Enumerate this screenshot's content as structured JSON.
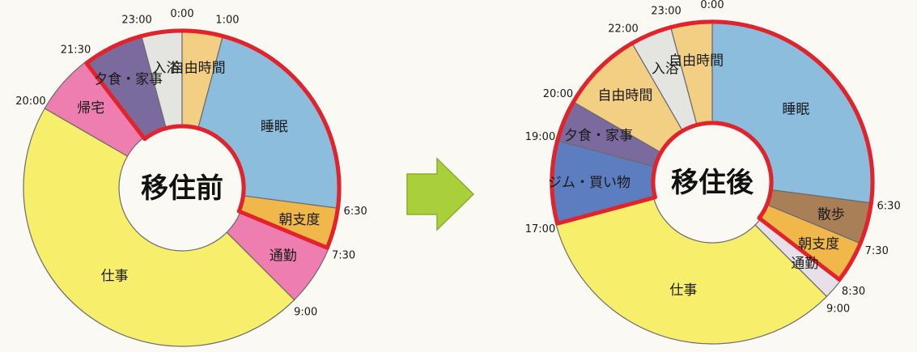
{
  "chart_data": [
    {
      "type": "donut",
      "center_label": "移住前",
      "highlight": {
        "from": "21:30",
        "to": "7:30"
      },
      "segments": [
        {
          "label": "睡眠",
          "start": "1:00",
          "end": "6:30",
          "color": "#8cbddc"
        },
        {
          "label": "朝支度",
          "start": "6:30",
          "end": "7:30",
          "color": "#f0b74a"
        },
        {
          "label": "通勤",
          "start": "7:30",
          "end": "9:00",
          "color": "#ee7eb0"
        },
        {
          "label": "仕事",
          "start": "9:00",
          "end": "20:00",
          "color": "#f7ef6c"
        },
        {
          "label": "帰宅",
          "start": "20:00",
          "end": "21:30",
          "color": "#ee7eb0"
        },
        {
          "label": "夕食・家事",
          "start": "21:30",
          "end": "23:00",
          "color": "#7a6a9e"
        },
        {
          "label": "入浴",
          "start": "23:00",
          "end": "0:00",
          "color": "#e4e4e0"
        },
        {
          "label": "自由時間",
          "start": "0:00",
          "end": "1:00",
          "color": "#f3cf84"
        }
      ],
      "time_labels": [
        "0:00",
        "1:00",
        "6:30",
        "7:30",
        "9:00",
        "20:00",
        "21:30",
        "23:00"
      ]
    },
    {
      "type": "donut",
      "center_label": "移住後",
      "highlight": {
        "from": "17:00",
        "to": "8:30"
      },
      "segments": [
        {
          "label": "睡眠",
          "start": "0:00",
          "end": "6:30",
          "color": "#8cbddc"
        },
        {
          "label": "散歩",
          "start": "6:30",
          "end": "7:30",
          "color": "#a97f57"
        },
        {
          "label": "朝支度",
          "start": "7:30",
          "end": "8:30",
          "color": "#f0b74a"
        },
        {
          "label": "通勤",
          "start": "8:30",
          "end": "9:00",
          "color": "#e8e0e8"
        },
        {
          "label": "仕事",
          "start": "9:00",
          "end": "17:00",
          "color": "#f7ef6c"
        },
        {
          "label": "ジム・買い物",
          "start": "17:00",
          "end": "19:00",
          "color": "#5c7dc0"
        },
        {
          "label": "夕食・家事",
          "start": "19:00",
          "end": "20:00",
          "color": "#7a6a9e"
        },
        {
          "label": "自由時間",
          "start": "20:00",
          "end": "22:00",
          "color": "#f3cf84"
        },
        {
          "label": "入浴",
          "start": "22:00",
          "end": "23:00",
          "color": "#e4e4e0"
        },
        {
          "label": "自由時間",
          "start": "23:00",
          "end": "0:00",
          "color": "#f3cf84"
        }
      ],
      "time_labels": [
        "0:00",
        "23:00",
        "22:00",
        "20:00",
        "19:00",
        "17:00",
        "6:30",
        "7:30",
        "8:30",
        "9:00"
      ]
    }
  ],
  "arrow_color": "#a9d03a"
}
